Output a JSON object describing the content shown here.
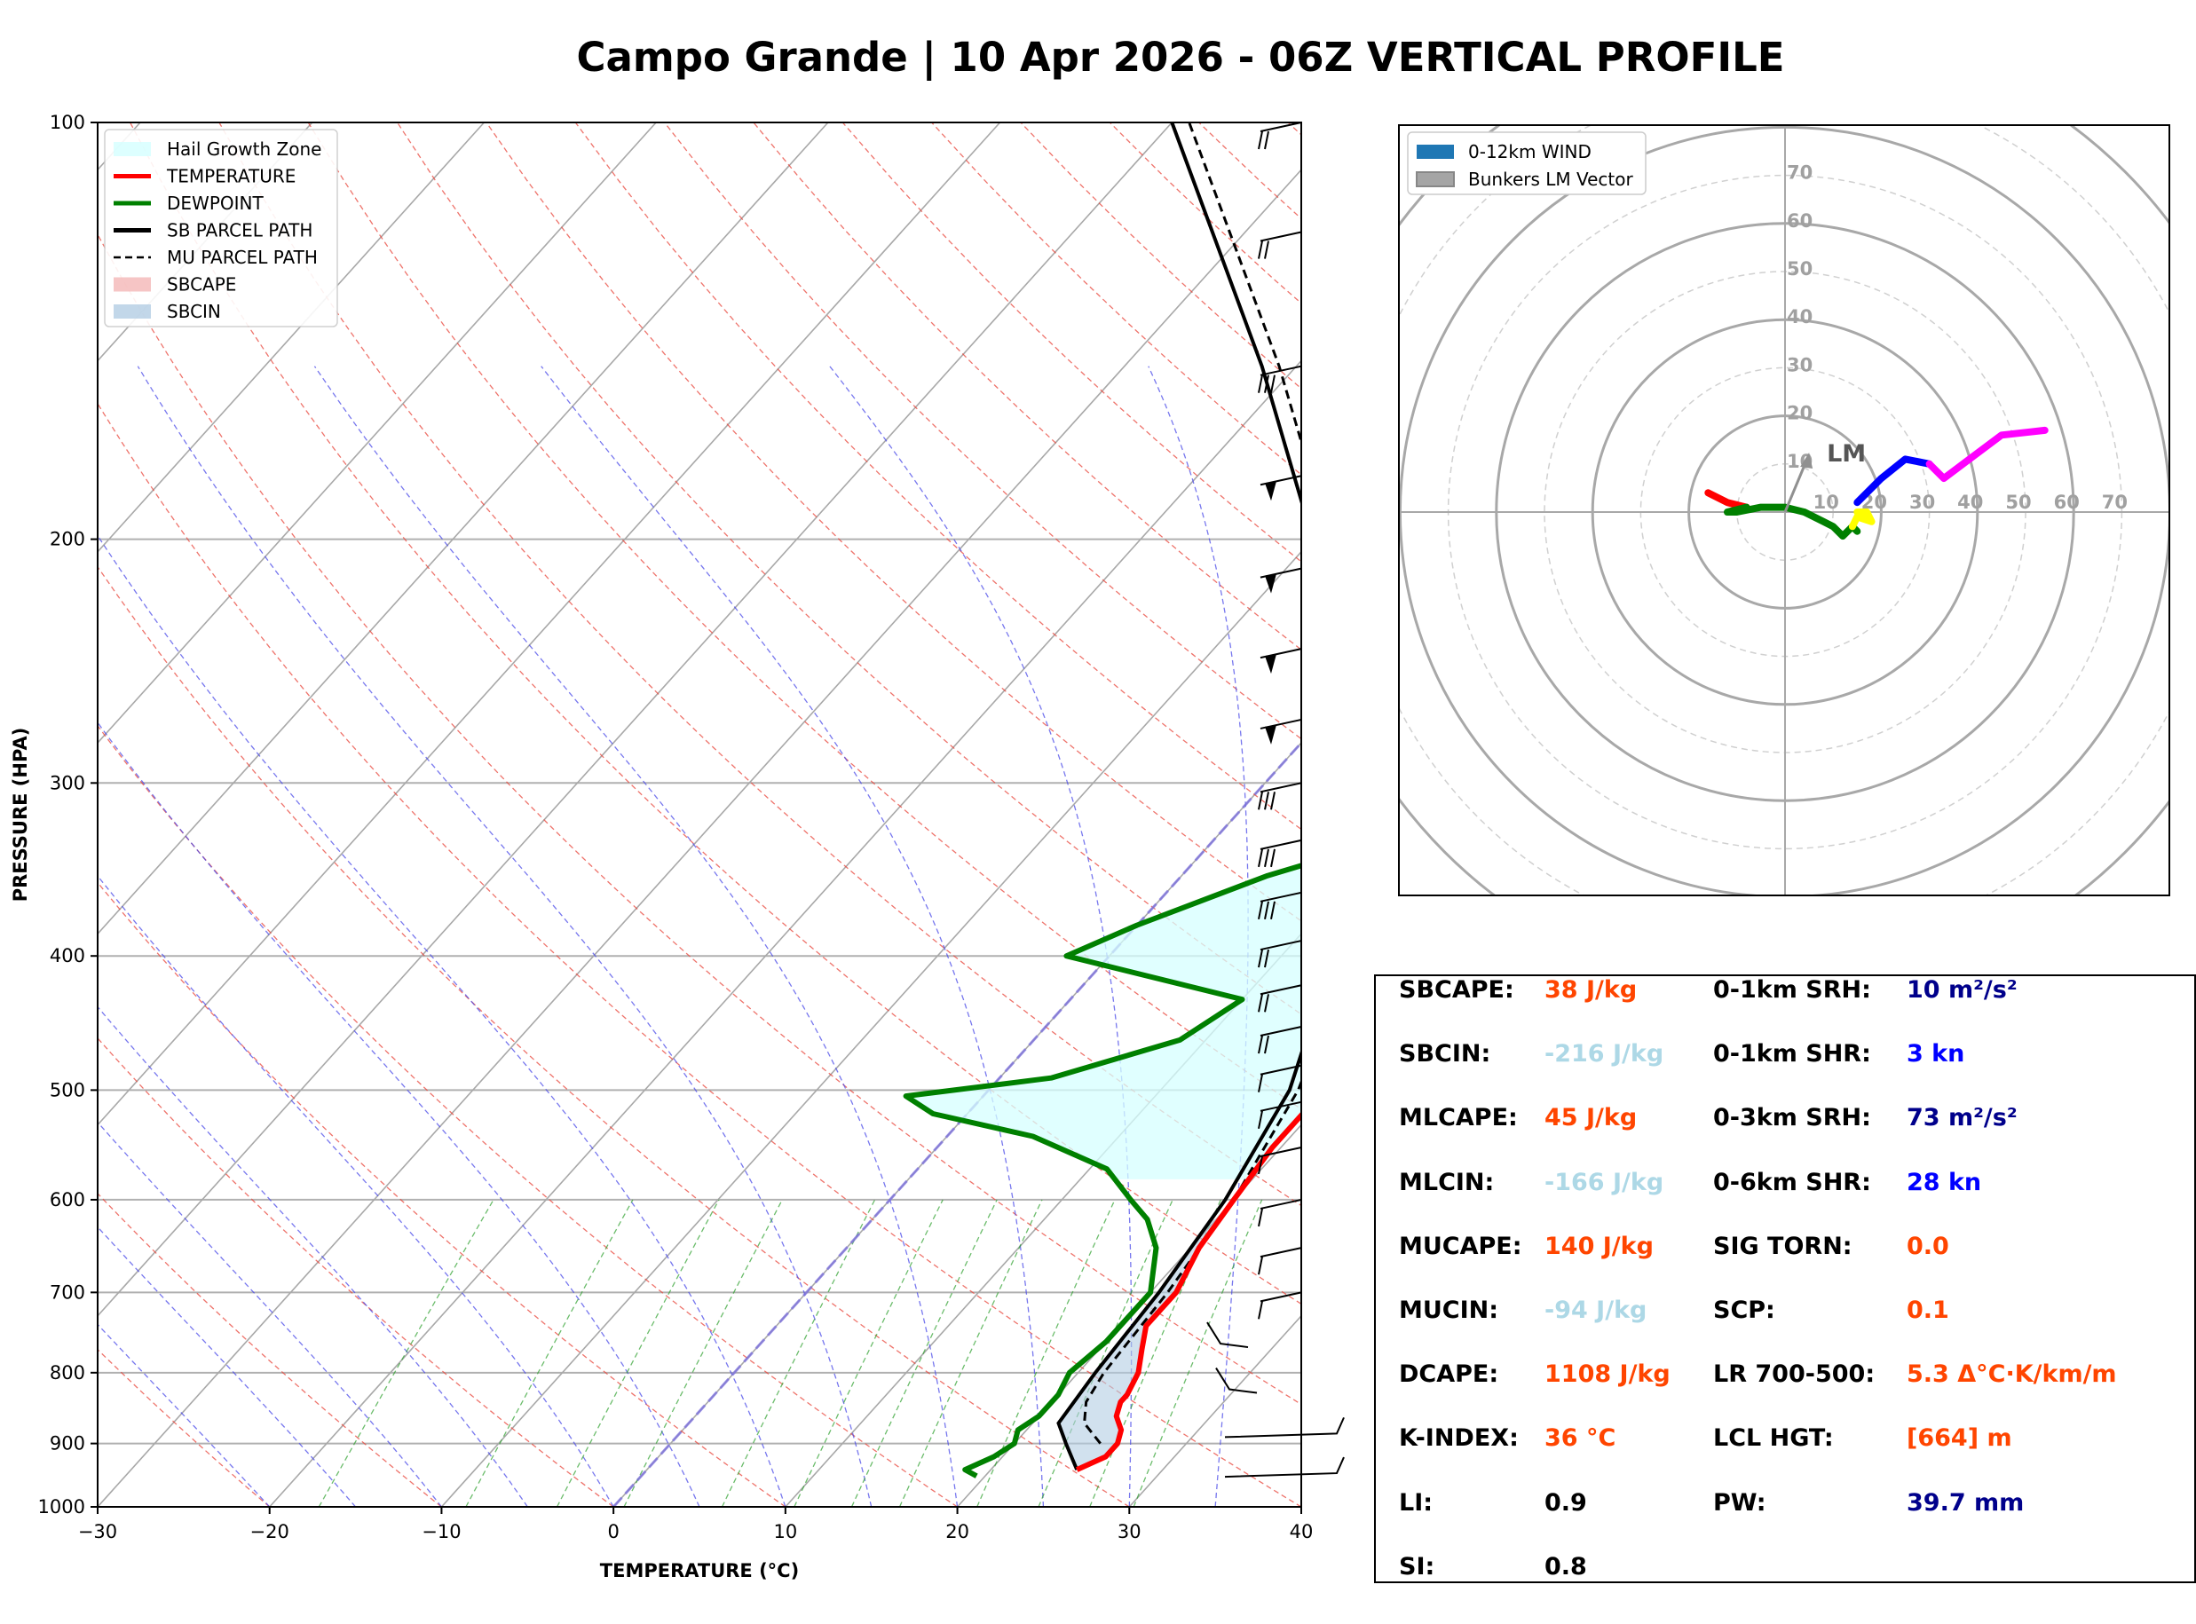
{
  "title": "Campo Grande | 10 Apr 2026 - 06Z VERTICAL PROFILE",
  "chart_data": [
    {
      "type": "line",
      "name": "skew-t",
      "xlabel": "TEMPERATURE (°C)",
      "ylabel": "PRESSURE (HPA)",
      "xlim": [
        -30,
        40
      ],
      "ylim": [
        1000,
        100
      ],
      "y_scale": "log",
      "x_ticks": [
        "−30",
        "−20",
        "−10",
        "0",
        "10",
        "20",
        "30",
        "40"
      ],
      "y_ticks": [
        "100",
        "200",
        "300",
        "400",
        "500",
        "600",
        "700",
        "800",
        "900",
        "1000"
      ],
      "legend_position": "top-left",
      "legend": [
        {
          "label": "Hail Growth Zone",
          "color": "#d5ffff",
          "style": "patch"
        },
        {
          "label": "TEMPERATURE",
          "color": "#ff0000",
          "style": "line"
        },
        {
          "label": "DEWPOINT",
          "color": "#008000",
          "style": "line"
        },
        {
          "label": "SB PARCEL PATH",
          "color": "#000000",
          "style": "line"
        },
        {
          "label": "MU PARCEL PATH",
          "color": "#000000",
          "style": "dash"
        },
        {
          "label": "SBCAPE",
          "color": "#f4b6b6",
          "style": "patch"
        },
        {
          "label": "SBCIN",
          "color": "#b3cde3",
          "style": "patch"
        }
      ],
      "temperature": [
        [
          940,
          25
        ],
        [
          920,
          26
        ],
        [
          900,
          26
        ],
        [
          880,
          25.5
        ],
        [
          860,
          24.5
        ],
        [
          840,
          24
        ],
        [
          830,
          24
        ],
        [
          800,
          23.5
        ],
        [
          770,
          22.5
        ],
        [
          740,
          21.5
        ],
        [
          700,
          21.5
        ],
        [
          650,
          20.5
        ],
        [
          600,
          20
        ],
        [
          550,
          19.5
        ],
        [
          520,
          19.5
        ],
        [
          505,
          19.5
        ],
        [
          490,
          18.5
        ],
        [
          470,
          17
        ],
        [
          450,
          15.5
        ],
        [
          430,
          15
        ],
        [
          410,
          15
        ],
        [
          380,
          14
        ],
        [
          360,
          12.5
        ],
        [
          340,
          10
        ],
        [
          320,
          7.5
        ],
        [
          300,
          5.5
        ],
        [
          260,
          2.5
        ],
        [
          230,
          0
        ],
        [
          200,
          -2
        ],
        [
          180,
          -4
        ],
        [
          160,
          -6
        ],
        [
          140,
          -8
        ],
        [
          120,
          -8.5
        ],
        [
          110,
          -7
        ],
        [
          100,
          -5
        ]
      ],
      "dewpoint": [
        [
          950,
          19.5
        ],
        [
          940,
          18.5
        ],
        [
          920,
          19.5
        ],
        [
          900,
          20
        ],
        [
          880,
          19.5
        ],
        [
          860,
          20
        ],
        [
          830,
          20
        ],
        [
          800,
          19.5
        ],
        [
          760,
          20
        ],
        [
          730,
          20
        ],
        [
          700,
          20
        ],
        [
          650,
          18
        ],
        [
          620,
          16
        ],
        [
          600,
          14
        ],
        [
          570,
          11
        ],
        [
          540,
          5
        ],
        [
          520,
          -2
        ],
        [
          505,
          -4.5
        ],
        [
          490,
          3
        ],
        [
          460,
          8.5
        ],
        [
          430,
          10
        ],
        [
          400,
          -2.5
        ],
        [
          380,
          0
        ],
        [
          350,
          5
        ],
        [
          330,
          10
        ],
        [
          300,
          11.5
        ],
        [
          260,
          6.5
        ],
        [
          240,
          5
        ],
        [
          220,
          8
        ],
        [
          200,
          8
        ],
        [
          170,
          5.5
        ],
        [
          155,
          7
        ],
        [
          140,
          4.5
        ],
        [
          130,
          1
        ],
        [
          120,
          -0.5
        ],
        [
          110,
          -1
        ],
        [
          100,
          -1
        ]
      ],
      "sb_parcel_path": [
        [
          940,
          25
        ],
        [
          900,
          23
        ],
        [
          870,
          21.5
        ],
        [
          800,
          21
        ],
        [
          700,
          20.5
        ],
        [
          600,
          19.5
        ],
        [
          500,
          17.5
        ],
        [
          400,
          13
        ],
        [
          300,
          5
        ],
        [
          200,
          -10
        ],
        [
          150,
          -22
        ],
        [
          100,
          -40
        ]
      ],
      "mu_parcel_path": [
        [
          900,
          25
        ],
        [
          870,
          23
        ],
        [
          840,
          22
        ],
        [
          800,
          21.5
        ],
        [
          700,
          21
        ],
        [
          600,
          20
        ],
        [
          500,
          18
        ],
        [
          400,
          14
        ],
        [
          300,
          6
        ],
        [
          200,
          -9
        ],
        [
          150,
          -21
        ],
        [
          100,
          -39
        ]
      ],
      "hail_growth_zone": {
        "p_top": 330,
        "p_bottom": 580
      }
    },
    {
      "type": "line",
      "name": "hodograph",
      "ring_labels": [
        "10",
        "20",
        "30",
        "40",
        "50",
        "60",
        "70"
      ],
      "legend_position": "top-left",
      "legend": [
        {
          "label": "0-12km WIND",
          "color": "#1f77b4"
        },
        {
          "label": "Bunkers LM Vector",
          "color": "#808080"
        }
      ],
      "storm_motion_label": "LM",
      "storm_motion_vector": [
        5,
        12
      ],
      "segments": [
        {
          "color": "#ff0000",
          "points": [
            [
              -16,
              4
            ],
            [
              -12,
              2
            ],
            [
              -8,
              1
            ]
          ]
        },
        {
          "color": "#008000",
          "points": [
            [
              -8,
              1
            ],
            [
              -12,
              0
            ],
            [
              -10,
              0
            ],
            [
              -5,
              1
            ],
            [
              0,
              1
            ],
            [
              4,
              0
            ],
            [
              8,
              -2
            ],
            [
              10,
              -3
            ],
            [
              12,
              -5
            ],
            [
              14,
              -3
            ],
            [
              15,
              -4
            ]
          ]
        },
        {
          "color": "#ffff00",
          "points": [
            [
              14,
              -3
            ],
            [
              15,
              -1
            ],
            [
              18,
              -2
            ],
            [
              17,
              0
            ],
            [
              15,
              0
            ]
          ]
        },
        {
          "color": "#0000ff",
          "points": [
            [
              15,
              2
            ],
            [
              20,
              7
            ],
            [
              25,
              11
            ],
            [
              30,
              10
            ]
          ]
        },
        {
          "color": "#ff00ff",
          "points": [
            [
              30,
              10
            ],
            [
              33,
              7
            ],
            [
              37,
              10
            ],
            [
              45,
              16
            ],
            [
              54,
              17
            ]
          ]
        }
      ]
    }
  ],
  "stats": [
    {
      "label": "SBCAPE:",
      "value": "38 J/kg",
      "color": "#ff4500"
    },
    {
      "label": "SBCIN:",
      "value": "-216 J/kg",
      "color": "#add8e6"
    },
    {
      "label": "MLCAPE:",
      "value": "45 J/kg",
      "color": "#ff4500"
    },
    {
      "label": "MLCIN:",
      "value": "-166 J/kg",
      "color": "#add8e6"
    },
    {
      "label": "MUCAPE:",
      "value": "140 J/kg",
      "color": "#ff4500"
    },
    {
      "label": "MUCIN:",
      "value": "-94 J/kg",
      "color": "#add8e6"
    },
    {
      "label": "DCAPE:",
      "value": "1108 J/kg",
      "color": "#ff4500"
    },
    {
      "label": "K-INDEX:",
      "value": "36 °C",
      "color": "#ff4500"
    },
    {
      "label": "LI:",
      "value": "0.9",
      "color": "#000000"
    },
    {
      "label": "SI:",
      "value": "0.8",
      "color": "#000000"
    },
    {
      "label": "0-1km SRH:",
      "value": "10 m²/s²",
      "color": "#00008b"
    },
    {
      "label": "0-1km SHR:",
      "value": "3 kn",
      "color": "#0000ff"
    },
    {
      "label": "0-3km SRH:",
      "value": "73 m²/s²",
      "color": "#00008b"
    },
    {
      "label": "0-6km SHR:",
      "value": "28 kn",
      "color": "#0000ff"
    },
    {
      "label": "SIG TORN:",
      "value": "0.0",
      "color": "#ff4500"
    },
    {
      "label": "SCP:",
      "value": "0.1",
      "color": "#ff4500"
    },
    {
      "label": "LR 700-500:",
      "value": "5.3 Δ°C·K/km/m",
      "color": "#ff4500"
    },
    {
      "label": "LCL HGT:",
      "value": "[664] m",
      "color": "#ff4500"
    },
    {
      "label": "PW:",
      "value": "39.7 mm",
      "color": "#00008b"
    }
  ]
}
